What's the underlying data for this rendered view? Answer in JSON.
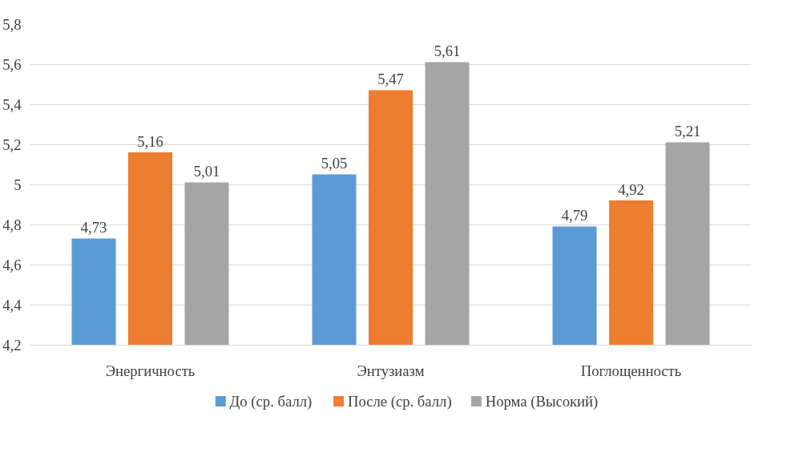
{
  "chart_data": {
    "type": "bar",
    "categories": [
      "Энергичность",
      "Энтузиазм",
      "Поглощенность"
    ],
    "series": [
      {
        "name": "До (ср. балл)",
        "color": "#5b9bd5",
        "values": [
          4.73,
          5.05,
          4.79
        ],
        "value_labels": [
          "4,73",
          "5,05",
          "4,79"
        ]
      },
      {
        "name": "После (ср. балл)",
        "color": "#ed7d31",
        "values": [
          5.16,
          5.47,
          4.92
        ],
        "value_labels": [
          "5,16",
          "5,47",
          "4,92"
        ]
      },
      {
        "name": "Норма (Высокий)",
        "color": "#a5a5a5",
        "values": [
          5.01,
          5.61,
          5.21
        ],
        "value_labels": [
          "5,01",
          "5,61",
          "5,21"
        ]
      }
    ],
    "ylim": [
      4.2,
      5.8
    ],
    "yticks": [
      {
        "value": 4.2,
        "label": "4,2"
      },
      {
        "value": 4.4,
        "label": "4,4"
      },
      {
        "value": 4.6,
        "label": "4,6"
      },
      {
        "value": 4.8,
        "label": "4,8"
      },
      5,
      {
        "value": 5.2,
        "label": "5,2"
      },
      {
        "value": 5.4,
        "label": "5,4"
      },
      {
        "value": 5.6,
        "label": "5,6"
      },
      {
        "value": 5.8,
        "label": "5,8"
      }
    ],
    "grid": "y",
    "legend": "bottom"
  }
}
